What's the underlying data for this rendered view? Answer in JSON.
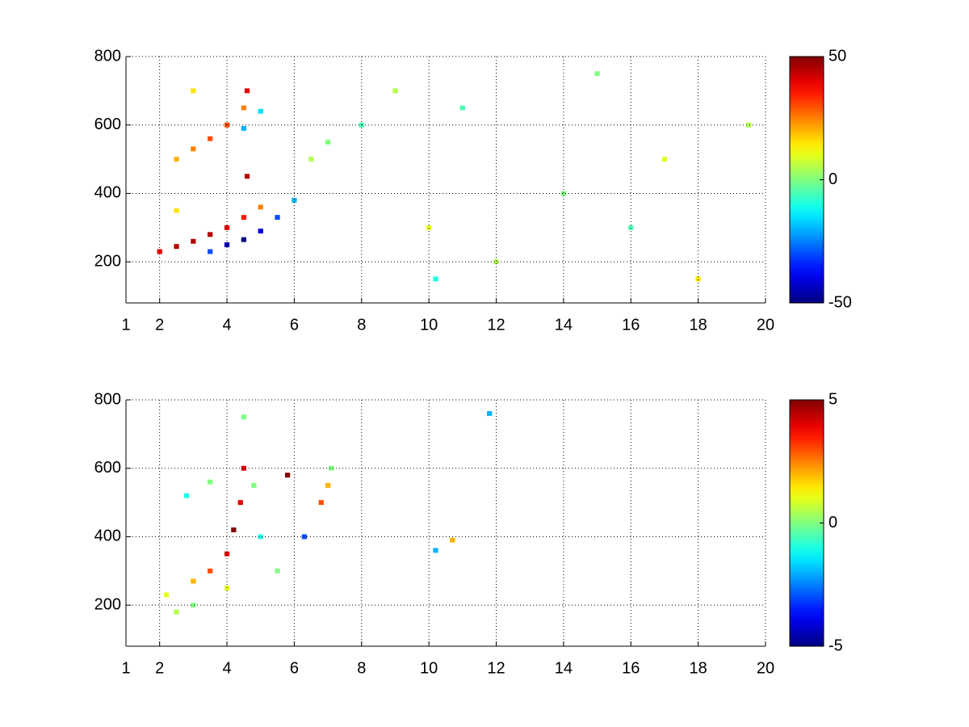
{
  "chart_data": [
    {
      "type": "heatmap",
      "colormap": "jet",
      "grid": true,
      "xlim": [
        1,
        20
      ],
      "xticks": [
        1,
        2,
        4,
        6,
        8,
        10,
        12,
        14,
        16,
        18,
        20
      ],
      "ylim": [
        80,
        800
      ],
      "yticks": [
        200,
        400,
        600,
        800
      ],
      "clim": [
        -50,
        50
      ],
      "cticks": [
        -50,
        0,
        50
      ],
      "x": [
        2,
        2.5,
        3,
        3.5,
        4,
        4.5,
        5,
        3.5,
        4,
        4.5,
        5,
        5.5,
        6,
        2.5,
        3,
        3.5,
        4,
        4.5,
        4.5,
        5,
        6.5,
        7,
        8,
        10,
        10.2,
        12,
        14,
        16,
        17,
        18,
        19.5,
        9,
        11,
        15,
        4.6,
        4.6,
        2.5,
        3
      ],
      "y": [
        230,
        245,
        260,
        280,
        300,
        330,
        360,
        230,
        250,
        265,
        290,
        330,
        380,
        500,
        530,
        560,
        600,
        650,
        590,
        640,
        500,
        550,
        600,
        300,
        150,
        200,
        400,
        300,
        500,
        150,
        600,
        700,
        650,
        750,
        700,
        450,
        350,
        700
      ],
      "values": [
        40,
        45,
        45,
        45,
        40,
        35,
        25,
        -30,
        -45,
        -50,
        -40,
        -30,
        -20,
        20,
        25,
        30,
        30,
        25,
        -20,
        -15,
        5,
        0,
        -5,
        10,
        -10,
        5,
        0,
        -5,
        10,
        15,
        5,
        5,
        -5,
        0,
        40,
        45,
        15,
        15
      ]
    },
    {
      "type": "heatmap",
      "colormap": "jet",
      "grid": true,
      "xlim": [
        1,
        20
      ],
      "xticks": [
        1,
        2,
        4,
        6,
        8,
        10,
        12,
        14,
        16,
        18,
        20
      ],
      "ylim": [
        80,
        800
      ],
      "yticks": [
        200,
        400,
        600,
        800
      ],
      "clim": [
        -5,
        5
      ],
      "cticks": [
        -5,
        0,
        5
      ],
      "x": [
        2.2,
        3,
        3.5,
        4,
        4.2,
        4.4,
        4.5,
        4.8,
        5,
        5.5,
        3,
        2.8,
        3.5,
        4.5,
        6.3,
        6.8,
        7,
        7.1,
        10.2,
        10.7,
        11.8,
        5.8,
        2.5,
        4
      ],
      "y": [
        230,
        270,
        300,
        350,
        420,
        500,
        600,
        550,
        400,
        300,
        200,
        520,
        560,
        750,
        400,
        500,
        550,
        600,
        360,
        390,
        760,
        580,
        180,
        250
      ],
      "values": [
        1,
        2,
        3,
        4,
        5,
        4,
        4,
        0,
        -1,
        0,
        0,
        -1,
        0,
        0,
        -3,
        3,
        2,
        0,
        -2,
        2,
        -2,
        5,
        0.5,
        1
      ]
    }
  ]
}
